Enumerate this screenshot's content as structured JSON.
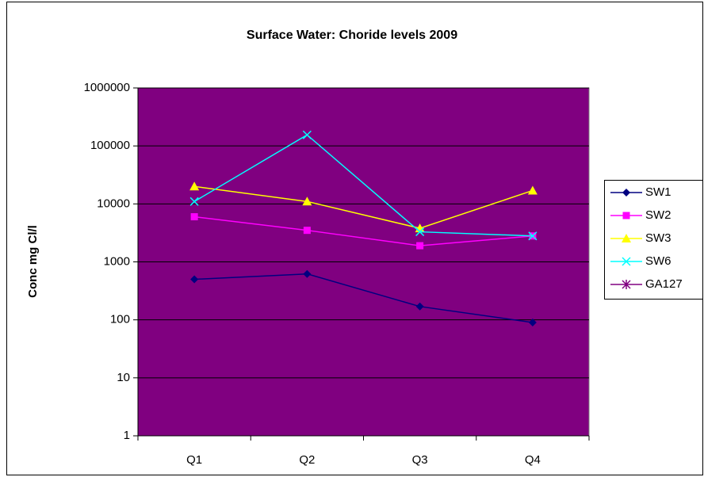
{
  "chart_data": {
    "type": "line",
    "title": "Surface Water: Choride levels 2009",
    "y_label": "Conc mg Cl/l",
    "categories": [
      "Q1",
      "Q2",
      "Q3",
      "Q4"
    ],
    "series": [
      {
        "name": "SW1",
        "color": "#000080",
        "marker": "diamond",
        "values": [
          500,
          620,
          170,
          90
        ]
      },
      {
        "name": "SW2",
        "color": "#FF00FF",
        "marker": "square",
        "values": [
          6000,
          3500,
          1900,
          2800
        ]
      },
      {
        "name": "SW3",
        "color": "#FFFF00",
        "marker": "triangle",
        "values": [
          20000,
          11000,
          3800,
          17000
        ]
      },
      {
        "name": "SW6",
        "color": "#00FFFF",
        "marker": "x",
        "values": [
          11000,
          155000,
          3300,
          2800
        ]
      },
      {
        "name": "GA127",
        "color": "#800080",
        "marker": "asterisk",
        "values": [
          null,
          null,
          null,
          null
        ]
      }
    ],
    "ylim": [
      1,
      1000000
    ],
    "yticks": [
      1,
      10,
      100,
      1000,
      10000,
      100000,
      1000000
    ],
    "log_y": true,
    "grid": true,
    "plot_background": "#800080",
    "legend": "right"
  }
}
